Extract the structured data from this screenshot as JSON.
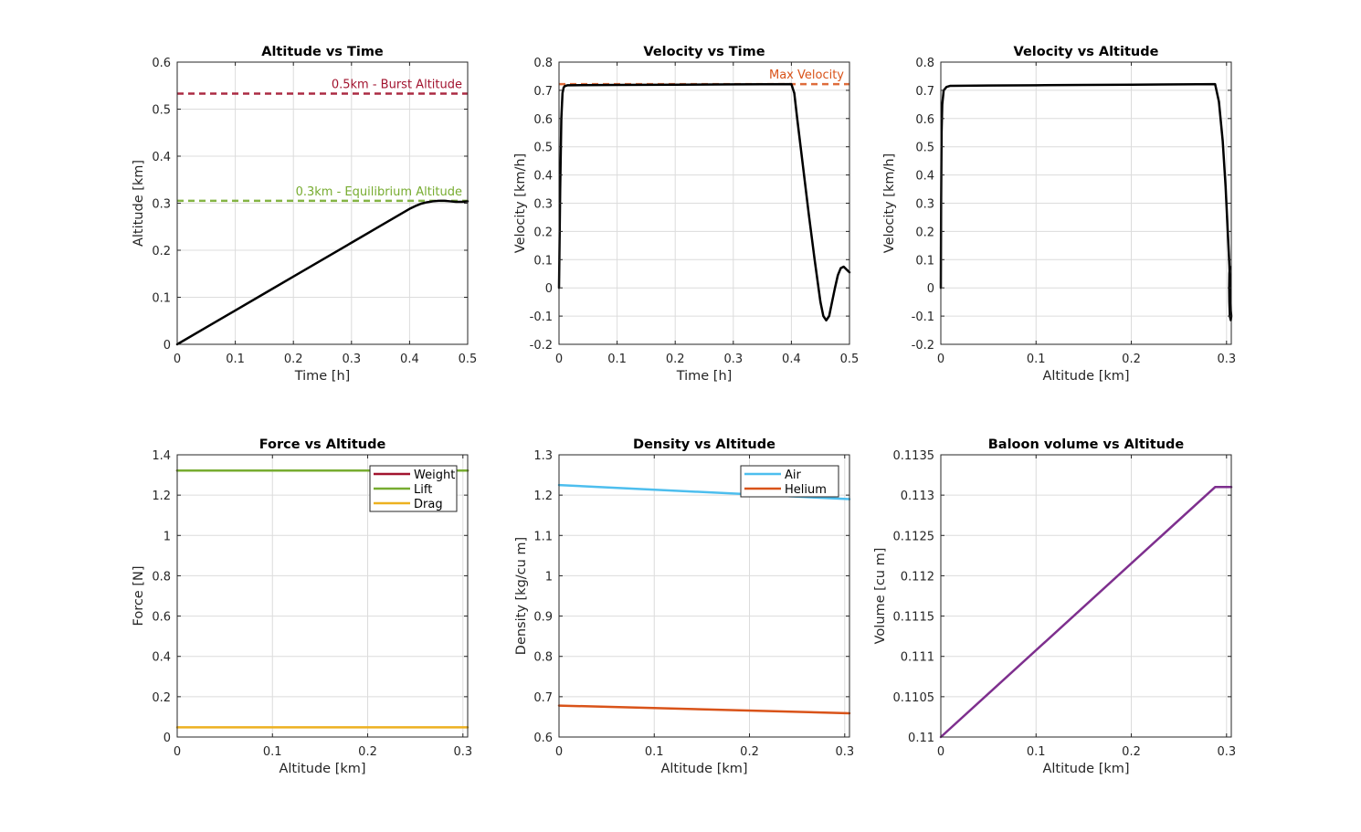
{
  "chart_data": [
    {
      "type": "line",
      "title": "Altitude vs Time",
      "xlabel": "Time [h]",
      "ylabel": "Altitude [km]",
      "xlim": [
        0,
        0.5
      ],
      "ylim": [
        0,
        0.6
      ],
      "xticks": [
        0,
        0.1,
        0.2,
        0.3,
        0.4,
        0.5
      ],
      "xticklabels": [
        "0",
        "0.1",
        "0.2",
        "0.3",
        "0.4",
        "0.5"
      ],
      "yticks": [
        0,
        0.1,
        0.2,
        0.3,
        0.4,
        0.5,
        0.6
      ],
      "yticklabels": [
        "0",
        "0.1",
        "0.2",
        "0.3",
        "0.4",
        "0.5",
        "0.6"
      ],
      "grid": true,
      "legend": null,
      "series": [
        {
          "color": "#000000",
          "width": 2.5,
          "x": [
            0,
            0.05,
            0.1,
            0.15,
            0.2,
            0.25,
            0.3,
            0.35,
            0.4,
            0.41,
            0.42,
            0.43,
            0.44,
            0.45,
            0.46,
            0.47,
            0.48,
            0.49,
            0.5
          ],
          "y": [
            0,
            0.036,
            0.072,
            0.108,
            0.144,
            0.18,
            0.216,
            0.252,
            0.288,
            0.294,
            0.299,
            0.302,
            0.304,
            0.305,
            0.305,
            0.304,
            0.303,
            0.303,
            0.304
          ]
        }
      ],
      "reference_lines": [
        {
          "y": 0.533,
          "color": "#A2142F",
          "label": "0.5km - Burst Altitude"
        },
        {
          "y": 0.305,
          "color": "#77AC30",
          "label": "0.3km - Equilibrium Altitude"
        }
      ]
    },
    {
      "type": "line",
      "title": "Velocity vs Time",
      "xlabel": "Time [h]",
      "ylabel": "Velocity [km/h]",
      "xlim": [
        0,
        0.5
      ],
      "ylim": [
        -0.2,
        0.8
      ],
      "xticks": [
        0,
        0.1,
        0.2,
        0.3,
        0.4,
        0.5
      ],
      "xticklabels": [
        "0",
        "0.1",
        "0.2",
        "0.3",
        "0.4",
        "0.5"
      ],
      "yticks": [
        -0.2,
        -0.1,
        0,
        0.1,
        0.2,
        0.3,
        0.4,
        0.5,
        0.6,
        0.7,
        0.8
      ],
      "yticklabels": [
        "-0.2",
        "-0.1",
        "0",
        "0.1",
        "0.2",
        "0.3",
        "0.4",
        "0.5",
        "0.6",
        "0.7",
        "0.8"
      ],
      "grid": true,
      "legend": null,
      "series": [
        {
          "color": "#000000",
          "width": 2.5,
          "x": [
            0,
            0.002,
            0.004,
            0.006,
            0.008,
            0.01,
            0.015,
            0.02,
            0.1,
            0.2,
            0.3,
            0.4,
            0.405,
            0.41,
            0.42,
            0.43,
            0.44,
            0.45,
            0.455,
            0.46,
            0.465,
            0.47,
            0.475,
            0.48,
            0.485,
            0.49,
            0.495,
            0.5
          ],
          "y": [
            0,
            0.35,
            0.6,
            0.69,
            0.71,
            0.715,
            0.718,
            0.718,
            0.719,
            0.72,
            0.721,
            0.722,
            0.69,
            0.6,
            0.43,
            0.26,
            0.1,
            -0.05,
            -0.1,
            -0.115,
            -0.1,
            -0.05,
            0.0,
            0.045,
            0.07,
            0.075,
            0.065,
            0.055
          ]
        }
      ],
      "reference_lines": [
        {
          "y": 0.722,
          "color": "#D95319",
          "label": "Max Velocity"
        }
      ]
    },
    {
      "type": "line",
      "title": "Velocity vs Altitude",
      "xlabel": "Altitude [km]",
      "ylabel": "Velocity [km/h]",
      "xlim": [
        0,
        0.305
      ],
      "ylim": [
        -0.2,
        0.8
      ],
      "xticks": [
        0,
        0.1,
        0.2,
        0.3
      ],
      "xticklabels": [
        "0",
        "0.1",
        "0.2",
        "0.3"
      ],
      "yticks": [
        -0.2,
        -0.1,
        0,
        0.1,
        0.2,
        0.3,
        0.4,
        0.5,
        0.6,
        0.7,
        0.8
      ],
      "yticklabels": [
        "-0.2",
        "-0.1",
        "0",
        "0.1",
        "0.2",
        "0.3",
        "0.4",
        "0.5",
        "0.6",
        "0.7",
        "0.8"
      ],
      "grid": true,
      "legend": null,
      "series": [
        {
          "color": "#000000",
          "width": 2.5,
          "x": [
            0,
            0.0003,
            0.0008,
            0.0015,
            0.003,
            0.006,
            0.01,
            0.05,
            0.1,
            0.15,
            0.2,
            0.25,
            0.288,
            0.292,
            0.296,
            0.299,
            0.301,
            0.303,
            0.304,
            0.3045,
            0.305,
            0.3045,
            0.3035,
            0.303,
            0.3028,
            0.303,
            0.3035
          ],
          "y": [
            0,
            0.3,
            0.55,
            0.65,
            0.7,
            0.712,
            0.716,
            0.717,
            0.718,
            0.719,
            0.72,
            0.721,
            0.722,
            0.66,
            0.52,
            0.36,
            0.22,
            0.08,
            -0.02,
            -0.08,
            -0.1,
            -0.115,
            -0.1,
            -0.05,
            0.0,
            0.05,
            0.075
          ]
        }
      ],
      "reference_lines": []
    },
    {
      "type": "line",
      "title": "Force vs Altitude",
      "xlabel": "Altitude [km]",
      "ylabel": "Force [N]",
      "xlim": [
        0,
        0.305
      ],
      "ylim": [
        0,
        1.4
      ],
      "xticks": [
        0,
        0.1,
        0.2,
        0.3
      ],
      "xticklabels": [
        "0",
        "0.1",
        "0.2",
        "0.3"
      ],
      "yticks": [
        0,
        0.2,
        0.4,
        0.6,
        0.8,
        1,
        1.2,
        1.4
      ],
      "yticklabels": [
        "0",
        "0.2",
        "0.4",
        "0.6",
        "0.8",
        "1",
        "1.2",
        "1.4"
      ],
      "grid": true,
      "legend": "top-right",
      "series": [
        {
          "name": "Weight",
          "color": "#A2142F",
          "width": 2.5,
          "x": [
            0,
            0.305
          ],
          "y": [
            1.322,
            1.322
          ]
        },
        {
          "name": "Lift",
          "color": "#77AC30",
          "width": 2.5,
          "x": [
            0,
            0.305
          ],
          "y": [
            1.322,
            1.322
          ]
        },
        {
          "name": "Drag",
          "color": "#EDB120",
          "width": 2.5,
          "x": [
            0,
            0.305
          ],
          "y": [
            0.048,
            0.048
          ]
        }
      ],
      "reference_lines": []
    },
    {
      "type": "line",
      "title": "Density vs Altitude",
      "xlabel": "Altitude [km]",
      "ylabel": "Density [kg/cu m]",
      "xlim": [
        0,
        0.305
      ],
      "ylim": [
        0.6,
        1.3
      ],
      "xticks": [
        0,
        0.1,
        0.2,
        0.3
      ],
      "xticklabels": [
        "0",
        "0.1",
        "0.2",
        "0.3"
      ],
      "yticks": [
        0.6,
        0.7,
        0.8,
        0.9,
        1,
        1.1,
        1.2,
        1.3
      ],
      "yticklabels": [
        "0.6",
        "0.7",
        "0.8",
        "0.9",
        "1",
        "1.1",
        "1.2",
        "1.3"
      ],
      "grid": true,
      "legend": "top-right",
      "series": [
        {
          "name": "Air",
          "color": "#4DBEEE",
          "width": 2.5,
          "x": [
            0,
            0.305
          ],
          "y": [
            1.225,
            1.19
          ]
        },
        {
          "name": "Helium",
          "color": "#D95319",
          "width": 2.5,
          "x": [
            0,
            0.305
          ],
          "y": [
            0.678,
            0.659
          ]
        }
      ],
      "reference_lines": []
    },
    {
      "type": "line",
      "title": "Baloon volume vs Altitude",
      "xlabel": "Altitude [km]",
      "ylabel": "Volume [cu m]",
      "xlim": [
        0,
        0.305
      ],
      "ylim": [
        0.11,
        0.1135
      ],
      "xticks": [
        0,
        0.1,
        0.2,
        0.3
      ],
      "xticklabels": [
        "0",
        "0.1",
        "0.2",
        "0.3"
      ],
      "yticks": [
        0.11,
        0.1105,
        0.111,
        0.1115,
        0.112,
        0.1125,
        0.113,
        0.1135
      ],
      "yticklabels": [
        "0.11",
        "0.1105",
        "0.111",
        "0.1115",
        "0.112",
        "0.1125",
        "0.113",
        "0.1135"
      ],
      "grid": true,
      "legend": null,
      "series": [
        {
          "color": "#7E2F8E",
          "width": 2.5,
          "x": [
            0,
            0.288,
            0.305
          ],
          "y": [
            0.11,
            0.1131,
            0.1131
          ]
        }
      ],
      "reference_lines": []
    }
  ]
}
